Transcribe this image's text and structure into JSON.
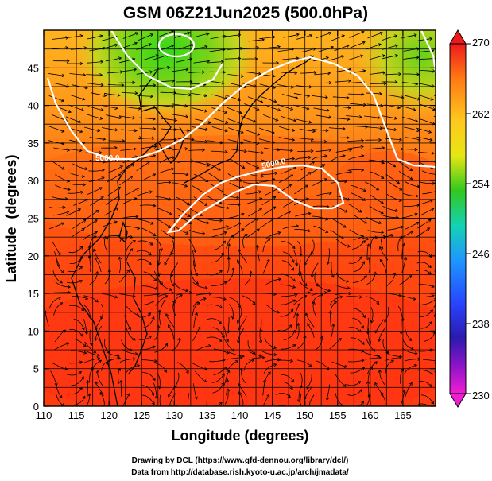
{
  "title": "GSM 06Z21Jun2025 (500.0hPa)",
  "xlabel": "Longitude (degrees)",
  "ylabel": "Latitude  (degrees)",
  "x_ticks": [
    "110",
    "115",
    "120",
    "125",
    "130",
    "135",
    "140",
    "145",
    "150",
    "155",
    "160",
    "165"
  ],
  "y_ticks": [
    "0",
    "5",
    "10",
    "15",
    "20",
    "25",
    "30",
    "35",
    "40",
    "45"
  ],
  "colorbar_ticks": [
    "270",
    "262",
    "254",
    "246",
    "238",
    "230"
  ],
  "contour_labels": [
    "5000.0",
    "5000.0"
  ],
  "credits": {
    "line1": "Drawing by DCL (https://www.gfd-dennou.org/library/dcl/)",
    "line2": "Data from http://database.rish.kyoto-u.ac.jp/arch/jmadata/"
  },
  "chart_data": {
    "type": "heatmap",
    "title": "GSM 06Z21Jun2025 (500.0hPa)",
    "xlabel": "Longitude (degrees)",
    "ylabel": "Latitude  (degrees)",
    "xlim": [
      110,
      170
    ],
    "ylim": [
      0,
      50
    ],
    "colorbar_range": [
      230,
      270
    ],
    "colorbar_ticks": [
      270,
      262,
      254,
      246,
      238,
      230
    ],
    "overlays": [
      "streamlines",
      "geopotential height contour 5000.0",
      "coastlines",
      "grid"
    ],
    "grid": true,
    "colors": {
      "tropics": "#ff3c10",
      "subtropics": "#ff7a14",
      "midlat": "#ffae18",
      "cold_core": "#52d018",
      "contour": "#ffffff"
    }
  }
}
